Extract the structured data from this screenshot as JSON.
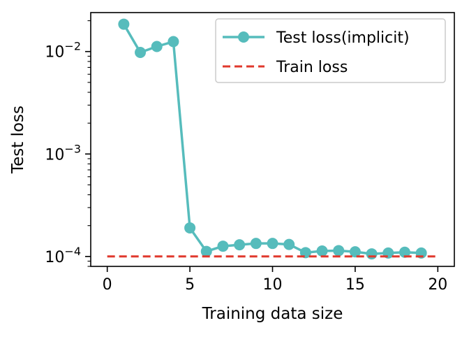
{
  "chart_data": {
    "type": "line",
    "title": "",
    "xlabel": "Training data size",
    "ylabel": "Test loss",
    "xlim": [
      -1,
      21
    ],
    "ylim": [
      8e-05,
      0.024
    ],
    "yscale": "log",
    "grid": false,
    "legend_placement": "top-right",
    "x_ticks": [
      {
        "value": 0,
        "label": "0"
      },
      {
        "value": 5,
        "label": "5"
      },
      {
        "value": 10,
        "label": "10"
      },
      {
        "value": 15,
        "label": "15"
      },
      {
        "value": 20,
        "label": "20"
      }
    ],
    "y_ticks": [
      {
        "value": 0.0001,
        "base": "10",
        "exp": "−4"
      },
      {
        "value": 0.001,
        "base": "10",
        "exp": "−3"
      },
      {
        "value": 0.01,
        "base": "10",
        "exp": "−2"
      }
    ],
    "series": [
      {
        "name": "Test loss(implicit)",
        "color": "#56bcbc",
        "style": "solid",
        "marker": "circle",
        "x": [
          1,
          2,
          3,
          4,
          5,
          6,
          7,
          8,
          9,
          10,
          11,
          12,
          13,
          14,
          15,
          16,
          17,
          18,
          19
        ],
        "y": [
          0.0185,
          0.0098,
          0.0112,
          0.0125,
          0.00019,
          0.000112,
          0.000126,
          0.00013,
          0.000134,
          0.000134,
          0.000131,
          0.000109,
          0.000113,
          0.000114,
          0.000111,
          0.000106,
          0.000108,
          0.00011,
          0.000108
        ]
      },
      {
        "name": "Train loss",
        "color": "#e0392d",
        "style": "dashed",
        "marker": "none",
        "x": [
          0,
          20
        ],
        "y": [
          0.0001,
          0.0001
        ]
      }
    ]
  }
}
